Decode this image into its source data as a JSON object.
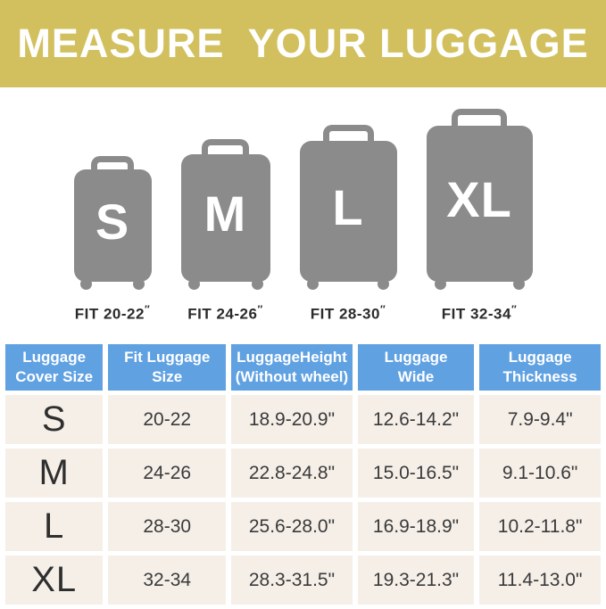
{
  "banner": {
    "title": "MEASURE  YOUR LUGGAGE",
    "bg_color": "#d2c05e"
  },
  "suitcases": [
    {
      "label": "S",
      "fit": "FIT 20-22",
      "prime": "″"
    },
    {
      "label": "M",
      "fit": "FIT 24-26",
      "prime": "″"
    },
    {
      "label": "L",
      "fit": "FIT 28-30",
      "prime": "″"
    },
    {
      "label": "XL",
      "fit": "FIT 32-34",
      "prime": "″"
    }
  ],
  "colors": {
    "banner_gold": "#d2c05e",
    "suitcase_gray": "#8b8b8b",
    "header_blue": "#60a1e2",
    "row_cream": "#f5efe8",
    "text_dark": "#3a3a3a"
  },
  "table": {
    "columns": [
      "Luggage\nCover Size",
      "Fit Luggage Size",
      "LuggageHeight\n(Without wheel)",
      "Luggage\nWide",
      "Luggage\nThickness"
    ],
    "rows": [
      [
        "S",
        "20-22",
        "18.9-20.9\"",
        "12.6-14.2\"",
        "7.9-9.4\""
      ],
      [
        "M",
        "24-26",
        "22.8-24.8\"",
        "15.0-16.5\"",
        "9.1-10.6\""
      ],
      [
        "L",
        "28-30",
        "25.6-28.0\"",
        "16.9-18.9\"",
        "10.2-11.8\""
      ],
      [
        "XL",
        "32-34",
        "28.3-31.5\"",
        "19.3-21.3\"",
        "11.4-13.0\""
      ]
    ]
  },
  "chart_data": {
    "type": "table",
    "title": "MEASURE  YOUR LUGGAGE",
    "columns": [
      "Luggage Cover Size",
      "Fit Luggage Size",
      "LuggageHeight (Without wheel)",
      "Luggage Wide",
      "Luggage Thickness"
    ],
    "rows": [
      [
        "S",
        "20-22",
        "18.9-20.9\"",
        "12.6-14.2\"",
        "7.9-9.4\""
      ],
      [
        "M",
        "24-26",
        "22.8-24.8\"",
        "15.0-16.5\"",
        "9.1-10.6\""
      ],
      [
        "L",
        "28-30",
        "25.6-28.0\"",
        "16.9-18.9\"",
        "10.2-11.8\""
      ],
      [
        "XL",
        "32-34",
        "28.3-31.5\"",
        "19.3-21.3\"",
        "11.4-13.0\""
      ]
    ]
  }
}
